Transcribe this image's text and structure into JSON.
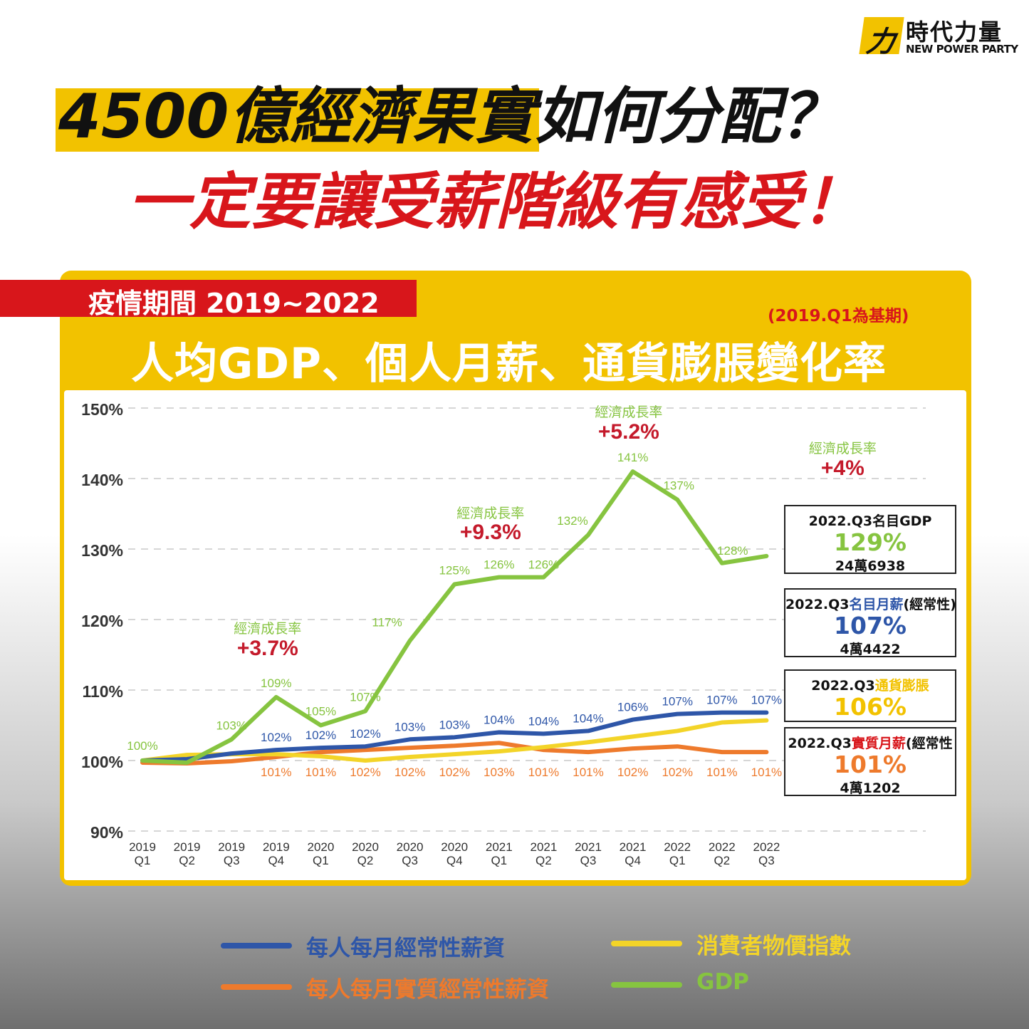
{
  "logo": {
    "mark": "力",
    "name": "時代力量",
    "sub": "NEW POWER PARTY"
  },
  "headline": {
    "line1_highlight": "4500億經濟果實",
    "line1_rest": "如何分配？",
    "line2": "一定要讓受薪階級有感受！"
  },
  "panel": {
    "tag": "疫情期間 2019~2022",
    "base_note": "(2019.Q1為基期)",
    "subtitle": "人均GDP、個人月薪、通貨膨脹變化率"
  },
  "colors": {
    "yellow": "#f2c200",
    "red": "#d8161b",
    "blue": "#2e56a8",
    "orange": "#ee7a2c",
    "cpi": "#f3d428",
    "gdp": "#86c440"
  },
  "chart_data": {
    "type": "line",
    "title": "人均GDP、個人月薪、通貨膨脹變化率",
    "ylim": [
      90,
      150
    ],
    "yticks": [
      "150%",
      "140%",
      "130%",
      "120%",
      "110%",
      "100%",
      "90%"
    ],
    "categories": [
      "2019 Q1",
      "2019 Q2",
      "2019 Q3",
      "2019 Q4",
      "2020 Q1",
      "2020 Q2",
      "2020 Q3",
      "2020 Q4",
      "2021 Q1",
      "2021 Q2",
      "2021 Q3",
      "2021 Q4",
      "2022 Q1",
      "2022 Q2",
      "2022 Q3"
    ],
    "series": [
      {
        "name": "GDP",
        "color": "#86c440",
        "values": [
          100,
          99.7,
          103,
          109,
          105,
          107,
          117,
          125,
          126,
          126,
          132,
          141,
          137,
          128,
          129
        ],
        "labels": [
          "100%",
          "",
          "103%",
          "109%",
          "105%",
          "107%",
          "117%",
          "125%",
          "126%",
          "126%",
          "132%",
          "141%",
          "137%",
          "128%",
          ""
        ]
      },
      {
        "name": "每人每月經常性薪資",
        "color": "#2e56a8",
        "values": [
          100,
          100.2,
          101,
          101.5,
          101.8,
          102,
          103,
          103.3,
          104,
          103.8,
          104.2,
          105.8,
          106.6,
          106.8,
          106.8
        ],
        "labels": [
          "",
          "",
          "",
          "102%",
          "102%",
          "102%",
          "103%",
          "103%",
          "104%",
          "104%",
          "104%",
          "106%",
          "107%",
          "107%",
          "107%"
        ]
      },
      {
        "name": "每人每月實質經常性薪資",
        "color": "#ee7a2c",
        "values": [
          99.7,
          99.6,
          99.9,
          100.5,
          101.2,
          101.5,
          101.8,
          102.1,
          102.5,
          101.5,
          101.2,
          101.7,
          102,
          101.2,
          101.2
        ],
        "labels": [
          "",
          "",
          "",
          "101%",
          "101%",
          "102%",
          "102%",
          "102%",
          "103%",
          "101%",
          "101%",
          "102%",
          "102%",
          "101%",
          "101%"
        ]
      },
      {
        "name": "消費者物價指數",
        "color": "#f3d428",
        "values": [
          100,
          100.8,
          100.9,
          100.9,
          100.6,
          100,
          100.5,
          100.9,
          101.3,
          101.9,
          102.6,
          103.4,
          104.2,
          105.4,
          105.7
        ],
        "labels": []
      }
    ],
    "annotations": [
      {
        "label": "經濟成長率",
        "value": "+3.7%",
        "x": 3
      },
      {
        "label": "經濟成長率",
        "value": "+9.3%",
        "x": 8
      },
      {
        "label": "經濟成長率",
        "value": "+5.2%",
        "x": 11.1
      },
      {
        "label": "經濟成長率",
        "value": "+4%",
        "x": 15.9
      }
    ]
  },
  "summary": [
    {
      "title_main": "2022.Q3名目GDP",
      "title_color_part": "",
      "title_tail": "",
      "value": "129%",
      "value_color": "#86c440",
      "sub": "24萬6938"
    },
    {
      "title_main": "2022.Q3",
      "title_color_part": "名目月薪",
      "title_tail": "(經常性)",
      "color_part_color": "#2e56a8",
      "value": "107%",
      "value_color": "#2e56a8",
      "sub": "4萬4422"
    },
    {
      "title_main": "2022.Q3",
      "title_color_part": "通貨膨脹",
      "title_tail": "",
      "color_part_color": "#f2c200",
      "value": "106%",
      "value_color": "#f2c200",
      "sub": ""
    },
    {
      "title_main": "2022.Q3",
      "title_color_part": "實質月薪",
      "title_tail": "(經常性",
      "color_part_color": "#d8161b",
      "value": "101%",
      "value_color": "#ee7a2c",
      "sub": "4萬1202"
    }
  ],
  "legend": [
    {
      "label": "每人每月經常性薪資",
      "color": "#2e56a8"
    },
    {
      "label": "消費者物價指數",
      "color": "#f3d428"
    },
    {
      "label": "每人每月實質經常性薪資",
      "color": "#ee7a2c"
    },
    {
      "label": "GDP",
      "color": "#86c440"
    }
  ]
}
